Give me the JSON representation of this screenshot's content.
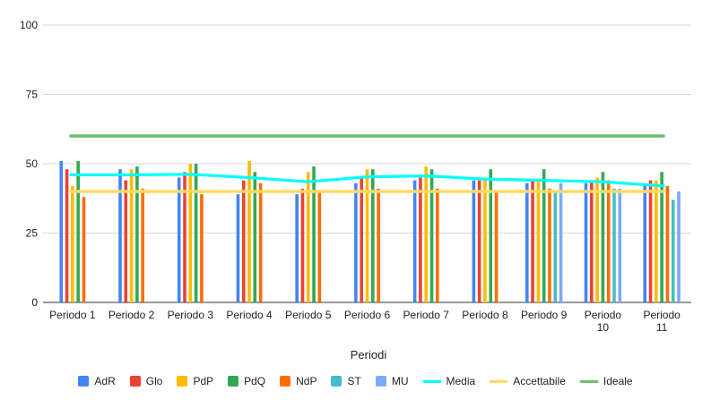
{
  "chart_data": {
    "type": "bar",
    "xlabel": "Periodi",
    "ylabel": "",
    "ylim": [
      0,
      100
    ],
    "yticks": [
      0,
      25,
      50,
      75,
      100
    ],
    "grid": true,
    "legend_position": "bottom",
    "categories": [
      [
        "Periodo 1"
      ],
      [
        "Periodo 2"
      ],
      [
        "Periodo 3"
      ],
      [
        "Periodo 4"
      ],
      [
        "Periodo 5"
      ],
      [
        "Periodo 6"
      ],
      [
        "Periodo 7"
      ],
      [
        "Periodo 8"
      ],
      [
        "Periodo 9"
      ],
      [
        "Periodo",
        "10"
      ],
      [
        "Periodo",
        "11"
      ]
    ],
    "series": [
      {
        "name": "AdR",
        "color": "#4285F4",
        "values": [
          51,
          48,
          45,
          39,
          39,
          43,
          44,
          44,
          43,
          43,
          42
        ]
      },
      {
        "name": "Glo",
        "color": "#EA4335",
        "values": [
          48,
          44,
          47,
          44,
          41,
          45,
          45,
          44,
          44,
          44,
          44
        ]
      },
      {
        "name": "PdP",
        "color": "#FBBC04",
        "values": [
          42,
          48,
          50,
          51,
          47,
          48,
          49,
          44,
          44,
          45,
          44
        ]
      },
      {
        "name": "PdQ",
        "color": "#34A853",
        "values": [
          51,
          49,
          50,
          47,
          49,
          48,
          48,
          48,
          48,
          47,
          47
        ]
      },
      {
        "name": "NdP",
        "color": "#FF6D01",
        "values": [
          38,
          41,
          39,
          43,
          40,
          41,
          41,
          40,
          41,
          44,
          42
        ]
      },
      {
        "name": "ST",
        "color": "#46BDC6",
        "values": [
          null,
          null,
          null,
          null,
          null,
          null,
          null,
          null,
          40,
          41,
          37
        ]
      },
      {
        "name": "MU",
        "color": "#7BAAF7",
        "values": [
          null,
          null,
          null,
          null,
          null,
          null,
          null,
          null,
          43,
          41,
          40
        ]
      }
    ],
    "lines": [
      {
        "name": "Media",
        "color": "#00FFFF",
        "values": [
          46,
          46,
          46.2,
          45,
          43.5,
          45.3,
          45.6,
          44.5,
          44,
          43.5,
          42
        ]
      },
      {
        "name": "Accettabile",
        "color": "#FFD966",
        "values": [
          40,
          40,
          40,
          40,
          40,
          40,
          40,
          40,
          40,
          40,
          40
        ]
      },
      {
        "name": "Ideale",
        "color": "#6ABF69",
        "values": [
          60,
          60,
          60,
          60,
          60,
          60,
          60,
          60,
          60,
          60,
          60
        ]
      }
    ]
  }
}
